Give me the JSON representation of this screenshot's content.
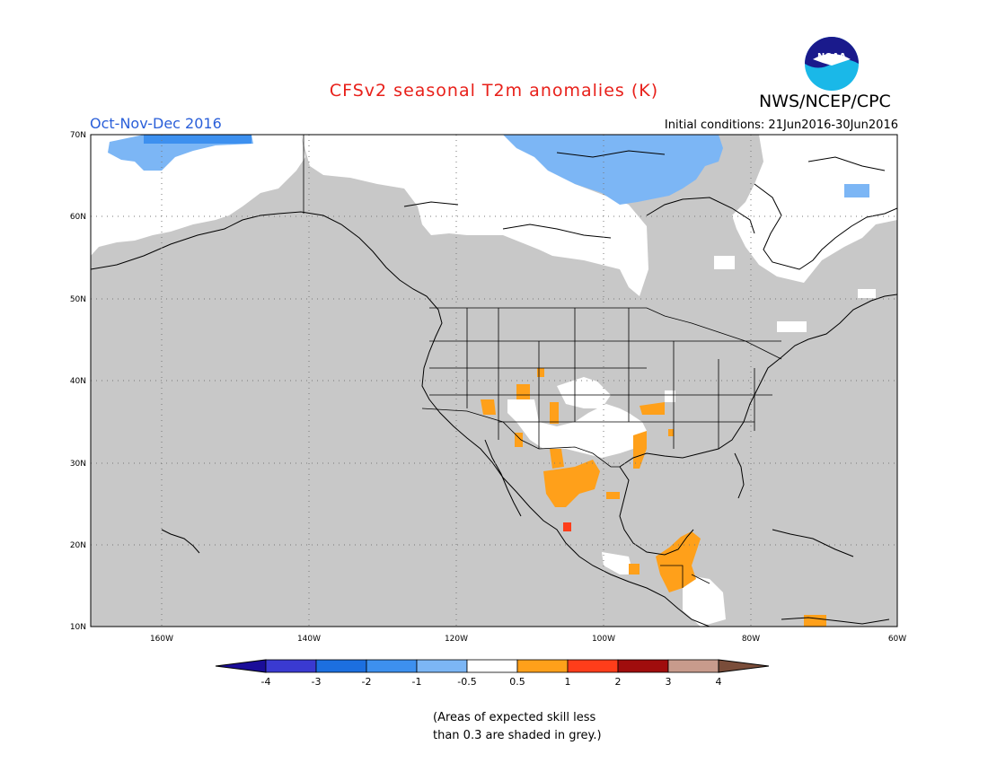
{
  "header": {
    "title": "CFSv2 seasonal T2m anomalies (K)",
    "agency": "NWS/NCEP/CPC",
    "logo_text": "NOAA",
    "season": "Oct-Nov-Dec 2016",
    "initial_conditions": "Initial conditions: 21Jun2016-30Jun2016",
    "title_color": "#e8201a",
    "season_color": "#2a5fd9"
  },
  "map": {
    "lat_labels": [
      "70N",
      "60N",
      "50N",
      "40N",
      "30N",
      "20N",
      "10N"
    ],
    "lon_labels": [
      "160W",
      "140W",
      "120W",
      "100W",
      "80W",
      "60W"
    ],
    "skill_mask_color": "#c8c8c8",
    "ocean_color": "#c8c8c8"
  },
  "legend": {
    "tick_labels": [
      "-4",
      "-3",
      "-2",
      "-1",
      "-0.5",
      "0.5",
      "1",
      "2",
      "3",
      "4"
    ],
    "colors": [
      "#1a0d99",
      "#3a3ad1",
      "#1c6fe0",
      "#3d90ef",
      "#7cb6f5",
      "#ffffff",
      "#ffa01a",
      "#ff3d1a",
      "#a00d0d",
      "#c89b8c",
      "#7a4d3a"
    ]
  },
  "footnote": {
    "line1": "(Areas of expected skill less",
    "line2": "than 0.3 are shaded in grey.)"
  }
}
